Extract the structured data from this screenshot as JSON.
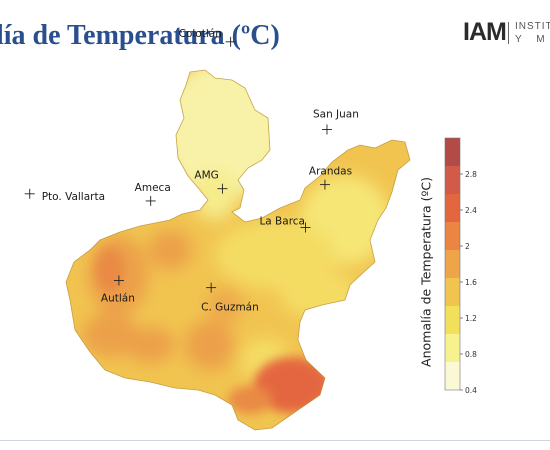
{
  "title": "lía de Temperatura (ºC)",
  "logo": {
    "mark": "IAM",
    "line1": "INSTITU",
    "line2": "Y M"
  },
  "cities": [
    {
      "name": "Colotlán",
      "lon": -103.27,
      "lat": 22.11
    },
    {
      "name": "San Juan",
      "lon": -102.33,
      "lat": 21.25
    },
    {
      "name": "Arandas",
      "lon": -102.35,
      "lat": 20.71
    },
    {
      "name": "Ameca",
      "lon": -104.05,
      "lat": 20.55
    },
    {
      "name": "AMG",
      "lon": -103.35,
      "lat": 20.67
    },
    {
      "name": "Pto. Vallarta",
      "lon": -105.23,
      "lat": 20.62
    },
    {
      "name": "La Barca",
      "lon": -102.54,
      "lat": 20.29
    },
    {
      "name": "Autlán",
      "lon": -104.36,
      "lat": 19.77
    },
    {
      "name": "C. Guzmán",
      "lon": -103.46,
      "lat": 19.7
    }
  ],
  "legend": {
    "title": "Anomalía de Temperatura (ºC)",
    "ticks": [
      "0.4",
      "0.8",
      "1.2",
      "1.6",
      "2",
      "2.4",
      "2.8"
    ],
    "min": 0.4,
    "max": 3.2,
    "colors": [
      "#fbf9d4",
      "#f6f28e",
      "#f3e05a",
      "#f1c450",
      "#eea54a",
      "#ea8544",
      "#e4663f",
      "#d25a48",
      "#b24a46"
    ]
  },
  "colors": {
    "title": "#2a4f8f",
    "state_fill": "#f1c450",
    "north_fill": "#f7ef9a",
    "hot": "#e4663f"
  }
}
